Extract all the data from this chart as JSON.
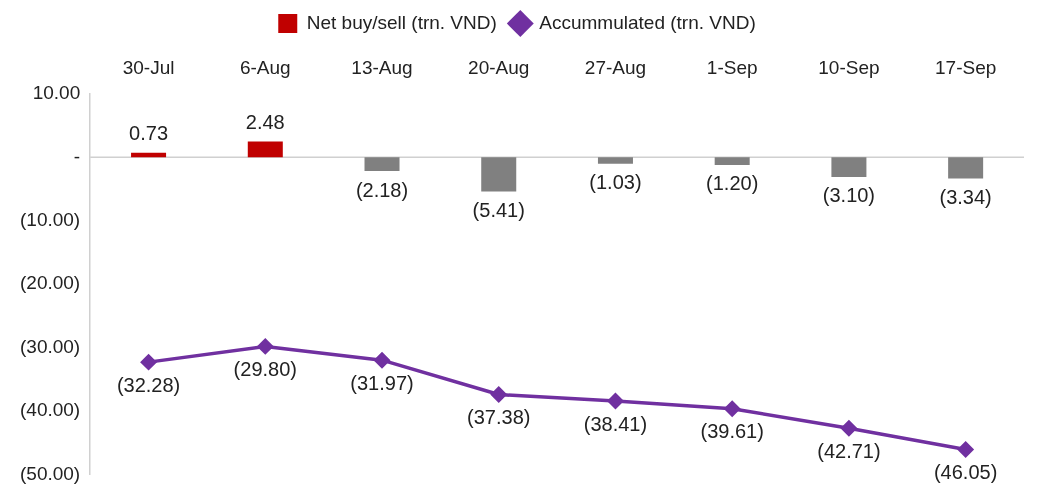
{
  "chart_data": {
    "type": "bar",
    "categories": [
      "30-Jul",
      "6-Aug",
      "13-Aug",
      "20-Aug",
      "27-Aug",
      "1-Sep",
      "10-Sep",
      "17-Sep"
    ],
    "series": [
      {
        "name": "Net buy/sell (trn. VND)",
        "color": "#c00000",
        "colors": [
          "#c00000",
          "#c00000",
          "#808080",
          "#808080",
          "#808080",
          "#808080",
          "#808080",
          "#808080"
        ],
        "values": [
          0.73,
          2.48,
          -2.18,
          -5.41,
          -1.03,
          -1.2,
          -3.1,
          -3.34
        ],
        "value_labels": [
          "0.73",
          "2.48",
          "(2.18)",
          "(5.41)",
          "(1.03)",
          "(1.20)",
          "(3.10)",
          "(3.34)"
        ]
      },
      {
        "name": "Accummulated (trn. VND)",
        "type": "line",
        "color": "#7030a0",
        "marker": "diamond",
        "values": [
          -32.28,
          -29.8,
          -31.97,
          -37.38,
          -38.41,
          -39.61,
          -42.71,
          -46.05
        ],
        "value_labels": [
          "(32.28)",
          "(29.80)",
          "(31.97)",
          "(37.38)",
          "(38.41)",
          "(39.61)",
          "(42.71)",
          "(46.05)"
        ]
      }
    ],
    "ylim": [
      -50,
      10
    ],
    "yticks": [
      {
        "value": -50,
        "label": "(50.00)"
      },
      {
        "value": -40,
        "label": "(40.00)"
      },
      {
        "value": -30,
        "label": "(30.00)"
      },
      {
        "value": -20,
        "label": "(20.00)"
      },
      {
        "value": -10,
        "label": "(10.00)"
      },
      {
        "value": 0,
        "label": "-"
      },
      {
        "value": 10,
        "label": "10.00"
      }
    ],
    "ref_lines": [
      {
        "axis": "y",
        "value": 0,
        "color": "#d0d0d0"
      }
    ],
    "grid": false,
    "legend": "top"
  }
}
